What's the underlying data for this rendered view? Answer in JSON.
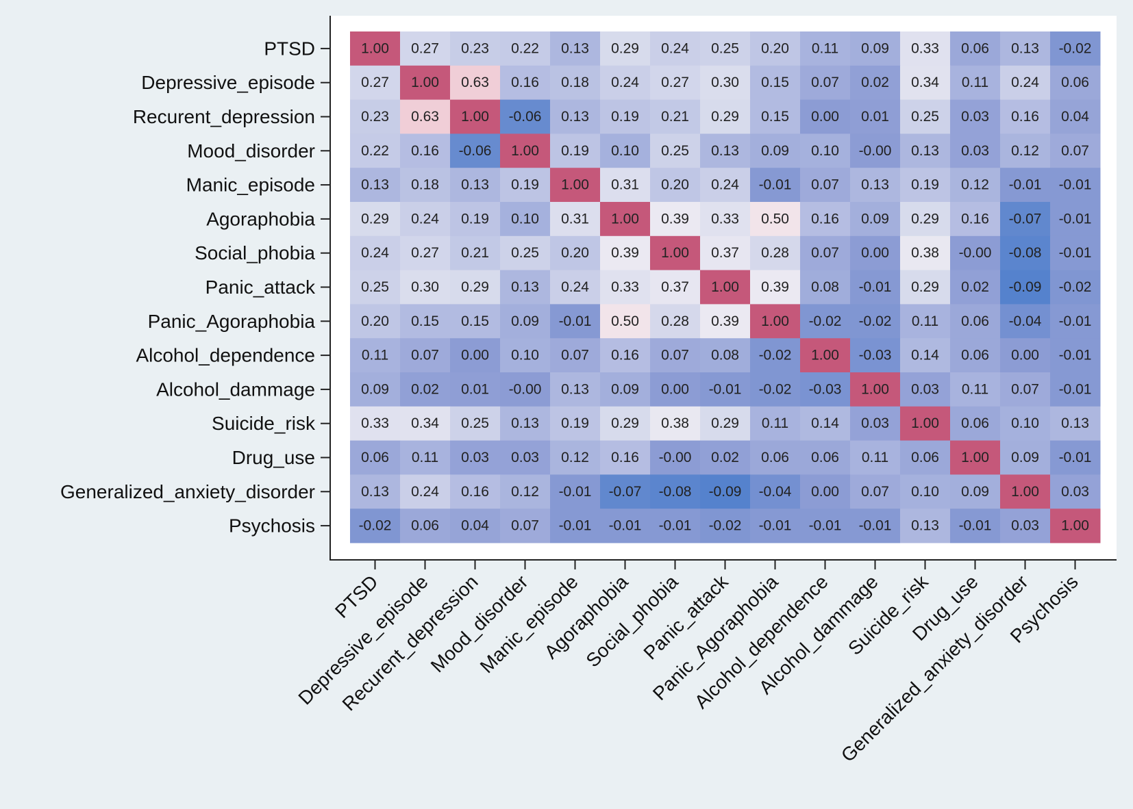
{
  "chart_data": {
    "type": "heatmap",
    "title": "",
    "xlabel": "",
    "ylabel": "",
    "value_range": [
      -0.1,
      1.0
    ],
    "colors": {
      "low": "#4f7fcc",
      "mid": "#eeecf2",
      "high": "#c5587a",
      "background": "#eaf0f3",
      "plot_background": "#ffffff"
    },
    "labels": [
      "PTSD",
      "Depressive_episode",
      "Recurent_depression",
      "Mood_disorder",
      "Manic_episode",
      "Agoraphobia",
      "Social_phobia",
      "Panic_attack",
      "Panic_Agoraphobia",
      "Alcohol_dependence",
      "Alcohol_dammage",
      "Suicide_risk",
      "Drug_use",
      "Generalized_anxiety_disorder",
      "Psychosis"
    ],
    "matrix": [
      [
        "1.00",
        "0.27",
        "0.23",
        "0.22",
        "0.13",
        "0.29",
        "0.24",
        "0.25",
        "0.20",
        "0.11",
        "0.09",
        "0.33",
        "0.06",
        "0.13",
        "-0.02"
      ],
      [
        "0.27",
        "1.00",
        "0.63",
        "0.16",
        "0.18",
        "0.24",
        "0.27",
        "0.30",
        "0.15",
        "0.07",
        "0.02",
        "0.34",
        "0.11",
        "0.24",
        "0.06"
      ],
      [
        "0.23",
        "0.63",
        "1.00",
        "-0.06",
        "0.13",
        "0.19",
        "0.21",
        "0.29",
        "0.15",
        "0.00",
        "0.01",
        "0.25",
        "0.03",
        "0.16",
        "0.04"
      ],
      [
        "0.22",
        "0.16",
        "-0.06",
        "1.00",
        "0.19",
        "0.10",
        "0.25",
        "0.13",
        "0.09",
        "0.10",
        "-0.00",
        "0.13",
        "0.03",
        "0.12",
        "0.07"
      ],
      [
        "0.13",
        "0.18",
        "0.13",
        "0.19",
        "1.00",
        "0.31",
        "0.20",
        "0.24",
        "-0.01",
        "0.07",
        "0.13",
        "0.19",
        "0.12",
        "-0.01",
        "-0.01"
      ],
      [
        "0.29",
        "0.24",
        "0.19",
        "0.10",
        "0.31",
        "1.00",
        "0.39",
        "0.33",
        "0.50",
        "0.16",
        "0.09",
        "0.29",
        "0.16",
        "-0.07",
        "-0.01"
      ],
      [
        "0.24",
        "0.27",
        "0.21",
        "0.25",
        "0.20",
        "0.39",
        "1.00",
        "0.37",
        "0.28",
        "0.07",
        "0.00",
        "0.38",
        "-0.00",
        "-0.08",
        "-0.01"
      ],
      [
        "0.25",
        "0.30",
        "0.29",
        "0.13",
        "0.24",
        "0.33",
        "0.37",
        "1.00",
        "0.39",
        "0.08",
        "-0.01",
        "0.29",
        "0.02",
        "-0.09",
        "-0.02"
      ],
      [
        "0.20",
        "0.15",
        "0.15",
        "0.09",
        "-0.01",
        "0.50",
        "0.28",
        "0.39",
        "1.00",
        "-0.02",
        "-0.02",
        "0.11",
        "0.06",
        "-0.04",
        "-0.01"
      ],
      [
        "0.11",
        "0.07",
        "0.00",
        "0.10",
        "0.07",
        "0.16",
        "0.07",
        "0.08",
        "-0.02",
        "1.00",
        "-0.03",
        "0.14",
        "0.06",
        "0.00",
        "-0.01"
      ],
      [
        "0.09",
        "0.02",
        "0.01",
        "-0.00",
        "0.13",
        "0.09",
        "0.00",
        "-0.01",
        "-0.02",
        "-0.03",
        "1.00",
        "0.03",
        "0.11",
        "0.07",
        "-0.01"
      ],
      [
        "0.33",
        "0.34",
        "0.25",
        "0.13",
        "0.19",
        "0.29",
        "0.38",
        "0.29",
        "0.11",
        "0.14",
        "0.03",
        "1.00",
        "0.06",
        "0.10",
        "0.13"
      ],
      [
        "0.06",
        "0.11",
        "0.03",
        "0.03",
        "0.12",
        "0.16",
        "-0.00",
        "0.02",
        "0.06",
        "0.06",
        "0.11",
        "0.06",
        "1.00",
        "0.09",
        "-0.01"
      ],
      [
        "0.13",
        "0.24",
        "0.16",
        "0.12",
        "-0.01",
        "-0.07",
        "-0.08",
        "-0.09",
        "-0.04",
        "0.00",
        "0.07",
        "0.10",
        "0.09",
        "1.00",
        "0.03"
      ],
      [
        "-0.02",
        "0.06",
        "0.04",
        "0.07",
        "-0.01",
        "-0.01",
        "-0.01",
        "-0.02",
        "-0.01",
        "-0.01",
        "-0.01",
        "0.13",
        "-0.01",
        "0.03",
        "1.00"
      ]
    ]
  }
}
